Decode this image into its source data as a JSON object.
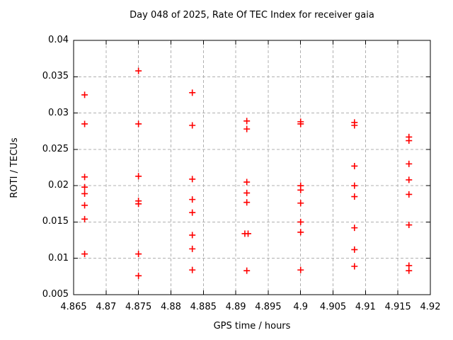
{
  "chart_data": {
    "type": "scatter",
    "title": "Day 048 of 2025, Rate Of TEC Index for receiver gaia",
    "xlabel": "GPS time / hours",
    "ylabel": "ROTI / TECUs",
    "xlim": [
      4.865,
      4.92
    ],
    "ylim": [
      0.005,
      0.04
    ],
    "xticks": [
      4.865,
      4.87,
      4.875,
      4.88,
      4.885,
      4.89,
      4.895,
      4.9,
      4.905,
      4.91,
      4.915,
      4.92
    ],
    "xtick_labels": [
      "4.865",
      "4.87",
      "4.875",
      "4.88",
      "4.885",
      "4.89",
      "4.895",
      "4.9",
      "4.905",
      "4.91",
      "4.915",
      "4.92"
    ],
    "yticks": [
      0.005,
      0.01,
      0.015,
      0.02,
      0.025,
      0.03,
      0.035,
      0.04
    ],
    "ytick_labels": [
      "0.005",
      "0.01",
      "0.015",
      "0.02",
      "0.025",
      "0.03",
      "0.035",
      "0.04"
    ],
    "grid": true,
    "legend": "none",
    "marker": "plus",
    "marker_color": "#ff0000",
    "grid_color": "#b0b0b0",
    "axis_color": "#000000",
    "background_color": "#ffffff",
    "points": [
      [
        4.8667,
        0.0325
      ],
      [
        4.8667,
        0.0285
      ],
      [
        4.8667,
        0.0212
      ],
      [
        4.8667,
        0.0198
      ],
      [
        4.8667,
        0.0189
      ],
      [
        4.8667,
        0.0173
      ],
      [
        4.8667,
        0.0154
      ],
      [
        4.8667,
        0.0106
      ],
      [
        4.875,
        0.0358
      ],
      [
        4.875,
        0.0285
      ],
      [
        4.875,
        0.0213
      ],
      [
        4.875,
        0.0179
      ],
      [
        4.875,
        0.0175
      ],
      [
        4.875,
        0.0106
      ],
      [
        4.875,
        0.0076
      ],
      [
        4.8833,
        0.0328
      ],
      [
        4.8833,
        0.0283
      ],
      [
        4.8833,
        0.0209
      ],
      [
        4.8833,
        0.0181
      ],
      [
        4.8833,
        0.0163
      ],
      [
        4.8833,
        0.0132
      ],
      [
        4.8833,
        0.0113
      ],
      [
        4.8833,
        0.0084
      ],
      [
        4.8917,
        0.0289
      ],
      [
        4.8917,
        0.0278
      ],
      [
        4.8917,
        0.0205
      ],
      [
        4.8917,
        0.019
      ],
      [
        4.8917,
        0.0177
      ],
      [
        4.8914,
        0.0134
      ],
      [
        4.8919,
        0.0134
      ],
      [
        4.8917,
        0.0083
      ],
      [
        4.9,
        0.0288
      ],
      [
        4.9,
        0.0285
      ],
      [
        4.9,
        0.02
      ],
      [
        4.9,
        0.0194
      ],
      [
        4.9,
        0.0176
      ],
      [
        4.9,
        0.015
      ],
      [
        4.9,
        0.0136
      ],
      [
        4.9,
        0.0084
      ],
      [
        4.9083,
        0.0287
      ],
      [
        4.9083,
        0.0283
      ],
      [
        4.9083,
        0.0227
      ],
      [
        4.9083,
        0.02
      ],
      [
        4.9083,
        0.0185
      ],
      [
        4.9083,
        0.0142
      ],
      [
        4.9083,
        0.0112
      ],
      [
        4.9083,
        0.0089
      ],
      [
        4.9167,
        0.0267
      ],
      [
        4.9167,
        0.0262
      ],
      [
        4.9167,
        0.023
      ],
      [
        4.9167,
        0.0208
      ],
      [
        4.9167,
        0.0188
      ],
      [
        4.9167,
        0.0146
      ],
      [
        4.9167,
        0.009
      ],
      [
        4.9167,
        0.0083
      ]
    ]
  }
}
